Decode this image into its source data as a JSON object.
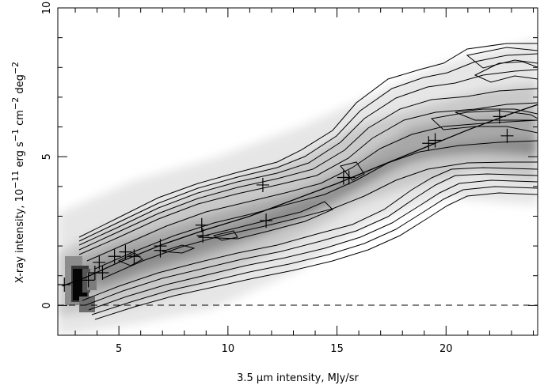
{
  "chart_data": {
    "type": "scatter",
    "title": "",
    "xlabel_prefix": "3.5 ",
    "xlabel_mu": "μ",
    "xlabel_suffix": "m intensity, MJy/sr",
    "ylabel_main": "X-ray intensity, 10",
    "ylabel_exp1": "−11",
    "ylabel_mid": " erg s",
    "ylabel_exp2": "−1",
    "ylabel_mid2": " cm",
    "ylabel_exp3": "−2",
    "ylabel_mid3": " deg",
    "ylabel_exp4": "−2",
    "xlim": [
      2.2,
      24.2
    ],
    "ylim": [
      -1.0,
      10.0
    ],
    "xticks": [
      5,
      10,
      15,
      20
    ],
    "yticks": [
      0,
      5,
      10
    ],
    "background": "grayscale density image with contour levels",
    "reference_line": {
      "y": 0,
      "style": "dashed"
    },
    "fit_line": {
      "x": [
        2.4,
        3.5,
        5,
        7,
        9,
        11,
        13,
        15,
        17,
        19,
        21,
        23,
        24.2
      ],
      "y": [
        0.65,
        0.95,
        1.45,
        2.05,
        2.55,
        3.0,
        3.55,
        4.1,
        4.7,
        5.3,
        5.9,
        6.45,
        6.75
      ]
    },
    "series": [
      {
        "values": [
          {
            "x": 2.5,
            "y": 0.7
          },
          {
            "x": 3.6,
            "y": 0.85
          },
          {
            "x": 3.9,
            "y": 1.1
          },
          {
            "x": 4.1,
            "y": 1.45
          },
          {
            "x": 4.25,
            "y": 1.1
          },
          {
            "x": 4.8,
            "y": 1.65
          },
          {
            "x": 5.3,
            "y": 1.8
          },
          {
            "x": 5.7,
            "y": 1.65
          },
          {
            "x": 6.9,
            "y": 2.0
          },
          {
            "x": 6.9,
            "y": 1.85
          },
          {
            "x": 8.8,
            "y": 2.7
          },
          {
            "x": 8.85,
            "y": 2.35
          },
          {
            "x": 11.6,
            "y": 4.05
          },
          {
            "x": 11.75,
            "y": 2.85
          },
          {
            "x": 15.3,
            "y": 4.3
          },
          {
            "x": 15.55,
            "y": 4.3
          },
          {
            "x": 19.2,
            "y": 5.45
          },
          {
            "x": 19.5,
            "y": 5.55
          },
          {
            "x": 22.45,
            "y": 6.35
          },
          {
            "x": 22.8,
            "y": 5.7
          }
        ]
      }
    ]
  }
}
